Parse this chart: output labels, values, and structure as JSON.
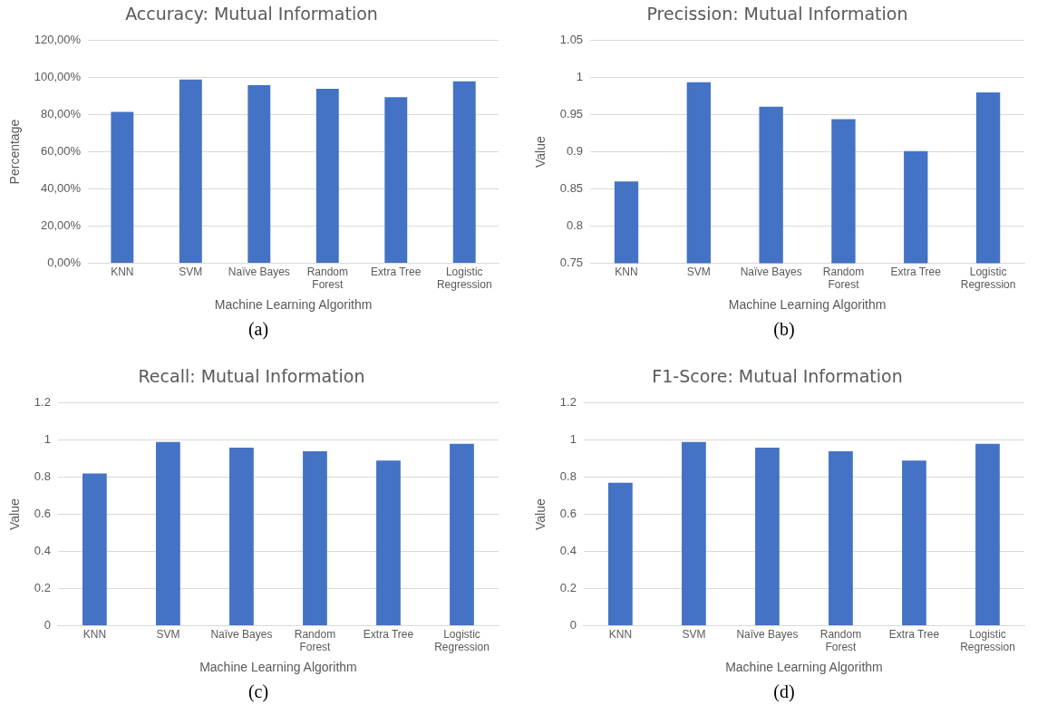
{
  "chart_data": [
    {
      "type": "bar",
      "title": "Accuracy: Mutual Information",
      "xlabel": "Machine Learning Algorithm",
      "ylabel": "Percentage",
      "categories": [
        "KNN",
        "SVM",
        "Naïve Bayes",
        "Random Forest",
        "Extra Tree",
        "Logistic Regression"
      ],
      "values": [
        81.5,
        99,
        96,
        94,
        89.5,
        98
      ],
      "color": "#4472c4",
      "ylim": [
        0,
        120
      ],
      "yticks": [
        {
          "value": 0,
          "label": "0,00%"
        },
        {
          "value": 20,
          "label": "20,00%"
        },
        {
          "value": 40,
          "label": "40,00%"
        },
        {
          "value": 60,
          "label": "60,00%"
        },
        {
          "value": 80,
          "label": "80,00%"
        },
        {
          "value": 100,
          "label": "100,00%"
        },
        {
          "value": 120,
          "label": "120,00%"
        }
      ],
      "grid": "y",
      "annotations": [
        "(a)"
      ]
    },
    {
      "type": "bar",
      "title": "Precission: Mutual Information",
      "xlabel": "Machine Learning Algorithm",
      "ylabel": "Value",
      "categories": [
        "KNN",
        "SVM",
        "Naïve Bayes",
        "Random Forest",
        "Extra Tree",
        "Logistic Regression"
      ],
      "values": [
        0.86,
        0.994,
        0.961,
        0.944,
        0.901,
        0.98
      ],
      "color": "#4472c4",
      "ylim": [
        0.75,
        1.05
      ],
      "yticks": [
        0.75,
        0.8,
        0.85,
        0.9,
        0.95,
        1,
        1.05
      ],
      "grid": "y",
      "annotations": [
        "(b)"
      ]
    },
    {
      "type": "bar",
      "title": "Recall: Mutual Information",
      "xlabel": "Machine Learning Algorithm",
      "ylabel": "Value",
      "categories": [
        "KNN",
        "SVM",
        "Naïve Bayes",
        "Random Forest",
        "Extra Tree",
        "Logistic Regression"
      ],
      "values": [
        0.82,
        0.99,
        0.96,
        0.94,
        0.89,
        0.98
      ],
      "color": "#4472c4",
      "ylim": [
        0,
        1.2
      ],
      "yticks": [
        0,
        0.2,
        0.4,
        0.6,
        0.8,
        1,
        1.2
      ],
      "grid": "y",
      "annotations": [
        "(c)"
      ]
    },
    {
      "type": "bar",
      "title": "F1-Score: Mutual Information",
      "xlabel": "Machine Learning Algorithm",
      "ylabel": "Value",
      "categories": [
        "KNN",
        "SVM",
        "Naïve Bayes",
        "Random Forest",
        "Extra Tree",
        "Logistic Regression"
      ],
      "values": [
        0.77,
        0.99,
        0.96,
        0.94,
        0.89,
        0.98
      ],
      "color": "#4472c4",
      "ylim": [
        0,
        1.2
      ],
      "yticks": [
        0,
        0.2,
        0.4,
        0.6,
        0.8,
        1,
        1.2
      ],
      "grid": "y",
      "annotations": [
        "(d)"
      ]
    }
  ]
}
